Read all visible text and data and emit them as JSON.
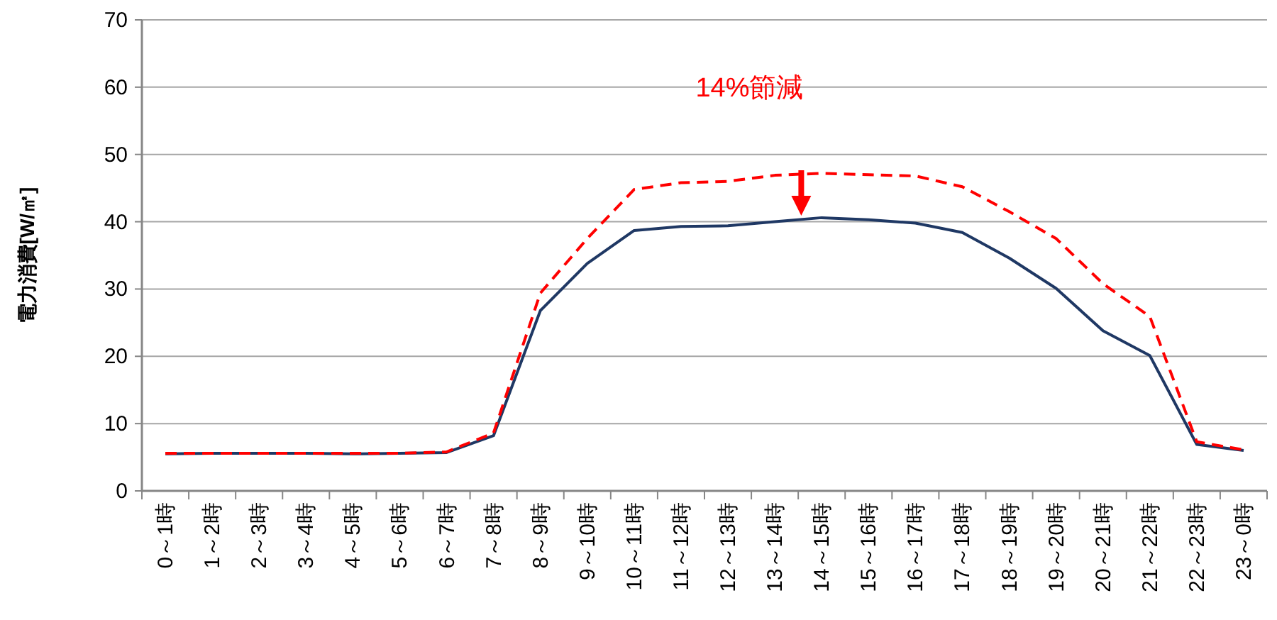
{
  "chart_data": {
    "type": "line",
    "ylabel": "電力消費[W/㎡]",
    "categories": [
      "0～1時",
      "1～2時",
      "2～3時",
      "3～4時",
      "4～5時",
      "5～6時",
      "6～7時",
      "7～8時",
      "8～9時",
      "9～10時",
      "10～11時",
      "11～12時",
      "12～13時",
      "13～14時",
      "14～15時",
      "15～16時",
      "16～17時",
      "17～18時",
      "18～19時",
      "19～20時",
      "20～21時",
      "21～22時",
      "22～23時",
      "23～0時"
    ],
    "series": [
      {
        "color": "#1f3864",
        "line_style": "solid",
        "values": [
          5.5,
          5.6,
          5.6,
          5.6,
          5.5,
          5.6,
          5.7,
          8.2,
          26.8,
          33.8,
          38.7,
          39.3,
          39.4,
          40.0,
          40.6,
          40.3,
          39.8,
          38.4,
          34.6,
          30.1,
          23.8,
          20.1,
          6.9,
          6.0
        ]
      },
      {
        "color": "#ff0000",
        "line_style": "dashed",
        "values": [
          5.6,
          5.6,
          5.6,
          5.6,
          5.6,
          5.6,
          5.8,
          8.6,
          29.4,
          37.5,
          44.8,
          45.8,
          46.0,
          46.9,
          47.2,
          47.0,
          46.8,
          45.2,
          41.5,
          37.5,
          30.8,
          25.9,
          7.3,
          6.1
        ]
      }
    ],
    "ylim": [
      0,
      70
    ],
    "yticks": [
      0,
      10,
      20,
      30,
      40,
      50,
      60,
      70
    ],
    "grid": "y",
    "annotations": [
      "14%節減"
    ]
  }
}
